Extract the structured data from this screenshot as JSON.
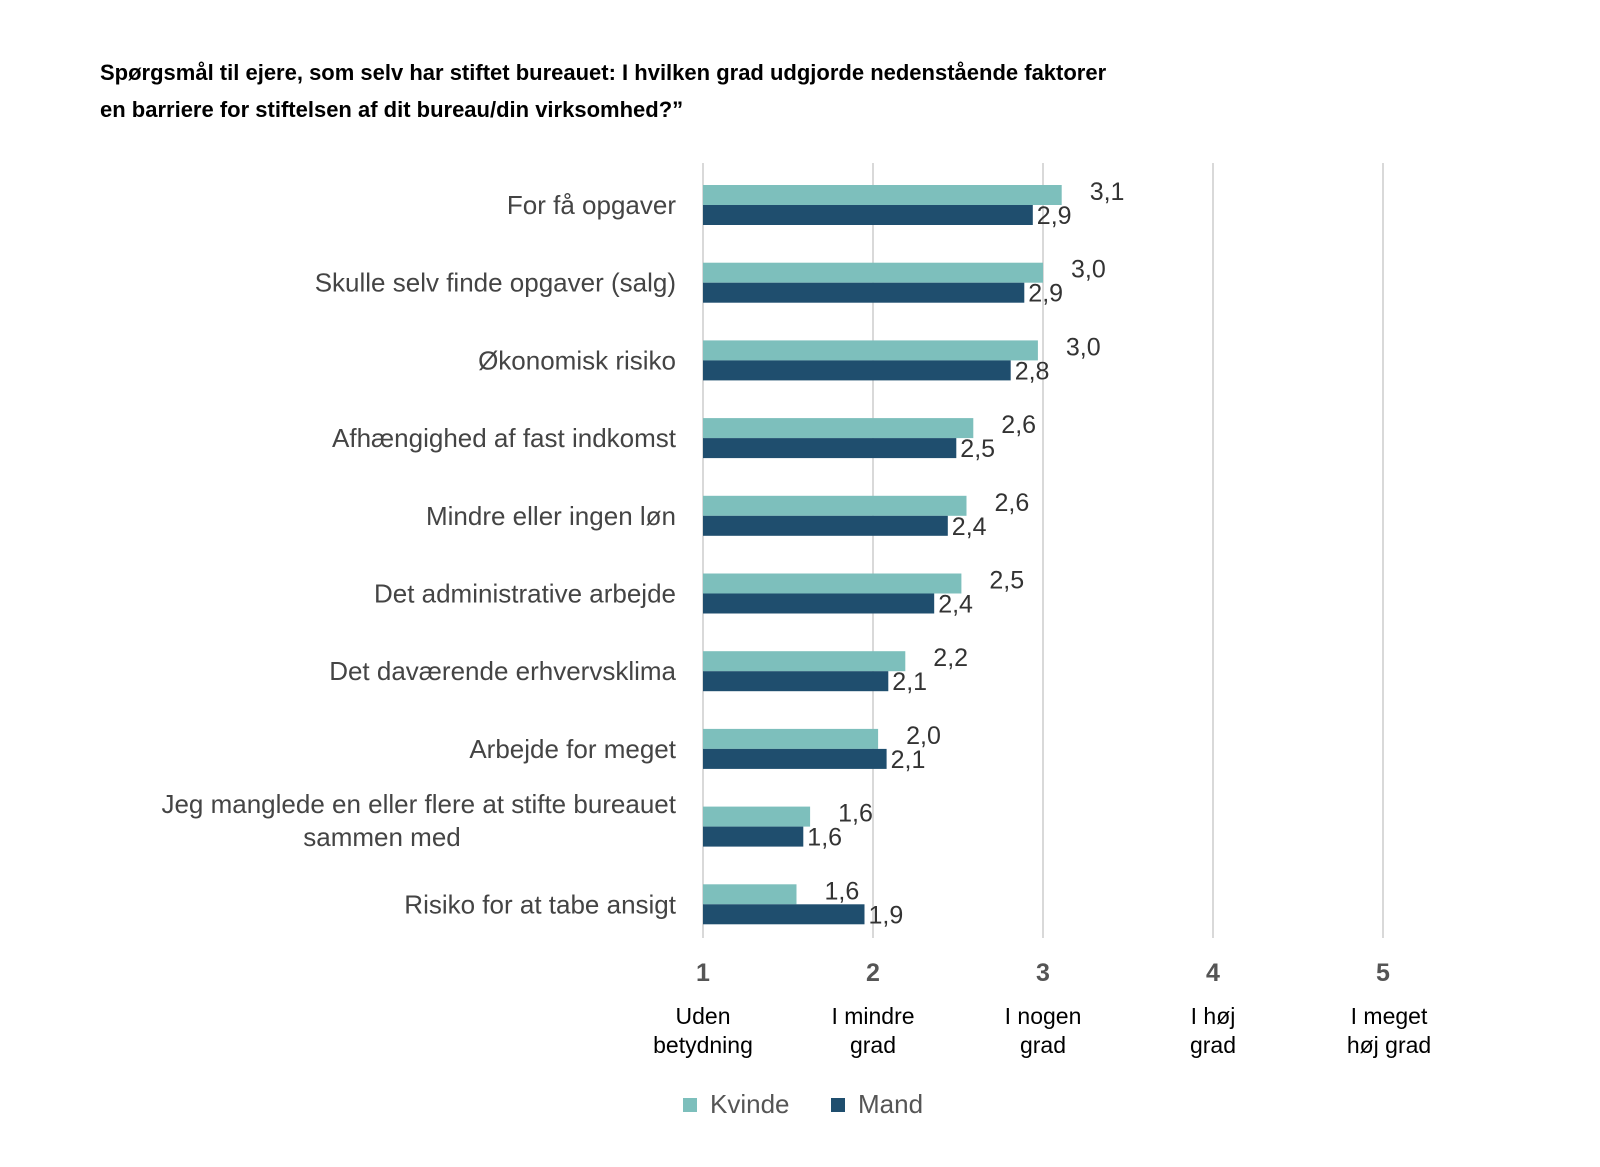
{
  "chart_data": {
    "type": "bar",
    "orientation": "horizontal",
    "title_lines": [
      "Spørgsmål til ejere, som selv har stiftet bureauet: I hvilken grad udgjorde nedenstående faktorer",
      "en barriere for stiftelsen af dit bureau/din virksomhed?”"
    ],
    "categories": [
      [
        "For få opgaver"
      ],
      [
        "Skulle selv finde opgaver (salg)"
      ],
      [
        "Økonomisk risiko"
      ],
      [
        "Afhængighed af fast indkomst"
      ],
      [
        "Mindre eller ingen løn"
      ],
      [
        "Det administrative arbejde"
      ],
      [
        "Det daværende erhvervsklima"
      ],
      [
        "Arbejde for meget"
      ],
      [
        "Jeg manglede en eller flere at stifte bureauet",
        "sammen med"
      ],
      [
        "Risiko for at tabe ansigt"
      ]
    ],
    "series": [
      {
        "name": "Kvinde",
        "color": "#7dbfbc",
        "values": [
          3.11,
          3.0,
          2.97,
          2.59,
          2.55,
          2.52,
          2.19,
          2.03,
          1.63,
          1.55
        ],
        "labels": [
          "3,1",
          "3,0",
          "3,0",
          "2,6",
          "2,6",
          "2,5",
          "2,2",
          "2,0",
          "1,6",
          "1,6"
        ]
      },
      {
        "name": "Mand",
        "color": "#1f4e6e",
        "values": [
          2.94,
          2.89,
          2.81,
          2.49,
          2.44,
          2.36,
          2.09,
          2.08,
          1.59,
          1.95
        ],
        "labels": [
          "2,9",
          "2,9",
          "2,8",
          "2,5",
          "2,4",
          "2,4",
          "2,1",
          "2,1",
          "1,6",
          "1,9"
        ]
      }
    ],
    "xlim": [
      1,
      5
    ],
    "xticks": [
      {
        "value": 1,
        "label": "1",
        "desc": [
          "Uden",
          "betydning"
        ]
      },
      {
        "value": 2,
        "label": "2",
        "desc": [
          "I mindre",
          "grad"
        ]
      },
      {
        "value": 3,
        "label": "3",
        "desc": [
          "I nogen",
          "grad"
        ]
      },
      {
        "value": 4,
        "label": "4",
        "desc": [
          "I høj",
          "grad"
        ]
      },
      {
        "value": 5,
        "label": "5",
        "desc": [
          "I meget",
          "høj grad"
        ]
      }
    ],
    "grid": true,
    "legend": "bottom"
  }
}
